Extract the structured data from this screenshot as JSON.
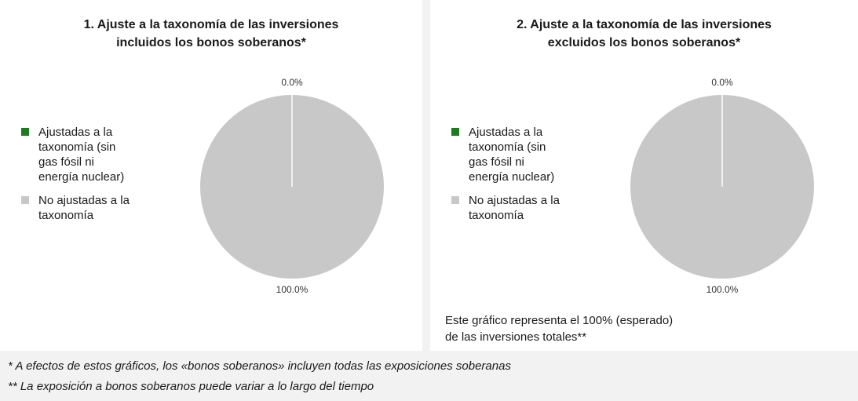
{
  "chart_data": [
    {
      "type": "pie",
      "title": [
        "1. Ajuste a la taxonomía de las inversiones",
        "incluidos los bonos soberanos*"
      ],
      "categories": [
        "Ajustadas a la taxonomía (sin gas fósil ni energía nuclear)",
        "No ajustadas a la taxonomía"
      ],
      "values": [
        0,
        100
      ],
      "value_labels": [
        "0.0%",
        "100.0%"
      ],
      "colors": [
        "#1e7b1e",
        "#c8c8c8"
      ],
      "legend": "left"
    },
    {
      "type": "pie",
      "title": [
        "2. Ajuste a la taxonomía de las inversiones",
        "excluidos los bonos soberanos*"
      ],
      "categories": [
        "Ajustadas a la taxonomía (sin gas fósil ni energía nuclear)",
        "No ajustadas a la taxonomía"
      ],
      "values": [
        0,
        100
      ],
      "value_labels": [
        "0.0%",
        "100.0%"
      ],
      "colors": [
        "#1e7b1e",
        "#c8c8c8"
      ],
      "legend": "left",
      "annotation": "Este gráfico representa el 100% (esperado) de las inversiones totales**"
    }
  ],
  "footnotes": [
    "* A efectos de estos gráficos, los «bonos soberanos» incluyen todas las exposiciones soberanas",
    "** La exposición a bonos soberanos puede variar a lo largo del tiempo"
  ]
}
